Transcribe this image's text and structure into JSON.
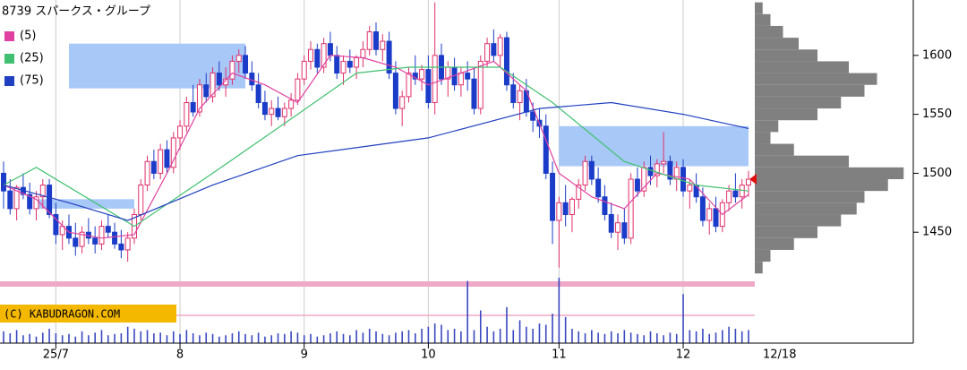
{
  "chart_data": {
    "type": "candlestick",
    "title": "8739 スパークス・グループ",
    "copyright": "(C) KABUDRAGON.COM",
    "up_color": "#e0306a",
    "down_color": "#1a3cc8",
    "volume_color": "#3a48c0",
    "zone_color": "#a8c8f8",
    "profile_color": "#808080",
    "ylim": [
      1419,
      1647
    ],
    "yticks": [
      1450,
      1500,
      1550,
      1600
    ],
    "grid": true,
    "xlim": [
      0,
      114
    ],
    "xticks": [
      {
        "value": 8,
        "label": "25/7"
      },
      {
        "value": 27,
        "label": "8"
      },
      {
        "value": 46,
        "label": "9"
      },
      {
        "value": 65,
        "label": "10"
      },
      {
        "value": 85,
        "label": "11"
      },
      {
        "value": 104,
        "label": "12"
      }
    ],
    "end_date": {
      "value": 114,
      "label": "12/18"
    },
    "ohlc": [
      [
        1500,
        1510,
        1470,
        1485
      ],
      [
        1485,
        1495,
        1465,
        1470
      ],
      [
        1470,
        1490,
        1460,
        1488
      ],
      [
        1488,
        1500,
        1478,
        1482
      ],
      [
        1482,
        1492,
        1465,
        1470
      ],
      [
        1470,
        1485,
        1460,
        1480
      ],
      [
        1480,
        1495,
        1470,
        1490
      ],
      [
        1490,
        1495,
        1462,
        1465
      ],
      [
        1465,
        1475,
        1440,
        1448
      ],
      [
        1448,
        1460,
        1435,
        1455
      ],
      [
        1455,
        1465,
        1440,
        1445
      ],
      [
        1445,
        1458,
        1430,
        1438
      ],
      [
        1438,
        1455,
        1432,
        1450
      ],
      [
        1450,
        1462,
        1440,
        1445
      ],
      [
        1445,
        1455,
        1432,
        1440
      ],
      [
        1440,
        1460,
        1435,
        1455
      ],
      [
        1455,
        1465,
        1445,
        1450
      ],
      [
        1450,
        1458,
        1436,
        1440
      ],
      [
        1440,
        1452,
        1428,
        1435
      ],
      [
        1435,
        1450,
        1425,
        1445
      ],
      [
        1445,
        1470,
        1440,
        1465
      ],
      [
        1465,
        1495,
        1460,
        1490
      ],
      [
        1490,
        1515,
        1485,
        1510
      ],
      [
        1510,
        1520,
        1495,
        1500
      ],
      [
        1500,
        1525,
        1495,
        1520
      ],
      [
        1520,
        1528,
        1500,
        1505
      ],
      [
        1505,
        1535,
        1500,
        1530
      ],
      [
        1530,
        1545,
        1520,
        1540
      ],
      [
        1540,
        1565,
        1535,
        1560
      ],
      [
        1560,
        1575,
        1548,
        1552
      ],
      [
        1552,
        1580,
        1548,
        1575
      ],
      [
        1575,
        1585,
        1560,
        1565
      ],
      [
        1565,
        1590,
        1560,
        1585
      ],
      [
        1585,
        1595,
        1570,
        1575
      ],
      [
        1575,
        1590,
        1565,
        1580
      ],
      [
        1580,
        1600,
        1575,
        1595
      ],
      [
        1595,
        1605,
        1585,
        1600
      ],
      [
        1600,
        1608,
        1580,
        1585
      ],
      [
        1585,
        1595,
        1570,
        1575
      ],
      [
        1575,
        1585,
        1555,
        1560
      ],
      [
        1560,
        1570,
        1545,
        1550
      ],
      [
        1550,
        1562,
        1540,
        1555
      ],
      [
        1555,
        1565,
        1545,
        1548
      ],
      [
        1548,
        1560,
        1540,
        1555
      ],
      [
        1555,
        1568,
        1548,
        1562
      ],
      [
        1562,
        1585,
        1558,
        1580
      ],
      [
        1580,
        1600,
        1575,
        1595
      ],
      [
        1595,
        1612,
        1588,
        1605
      ],
      [
        1605,
        1610,
        1585,
        1590
      ],
      [
        1590,
        1615,
        1585,
        1610
      ],
      [
        1610,
        1620,
        1595,
        1600
      ],
      [
        1600,
        1608,
        1580,
        1585
      ],
      [
        1585,
        1600,
        1575,
        1595
      ],
      [
        1595,
        1605,
        1585,
        1590
      ],
      [
        1590,
        1600,
        1580,
        1598
      ],
      [
        1598,
        1612,
        1590,
        1605
      ],
      [
        1605,
        1625,
        1600,
        1620
      ],
      [
        1620,
        1628,
        1600,
        1605
      ],
      [
        1605,
        1618,
        1595,
        1612
      ],
      [
        1612,
        1620,
        1580,
        1585
      ],
      [
        1585,
        1595,
        1550,
        1555
      ],
      [
        1555,
        1570,
        1540,
        1565
      ],
      [
        1565,
        1590,
        1560,
        1585
      ],
      [
        1585,
        1600,
        1575,
        1580
      ],
      [
        1580,
        1592,
        1570,
        1588
      ],
      [
        1588,
        1600,
        1555,
        1560
      ],
      [
        1560,
        1645,
        1550,
        1600
      ],
      [
        1600,
        1610,
        1575,
        1580
      ],
      [
        1580,
        1595,
        1565,
        1590
      ],
      [
        1590,
        1598,
        1570,
        1575
      ],
      [
        1575,
        1590,
        1565,
        1585
      ],
      [
        1585,
        1595,
        1570,
        1580
      ],
      [
        1580,
        1590,
        1550,
        1555
      ],
      [
        1555,
        1600,
        1550,
        1595
      ],
      [
        1595,
        1615,
        1590,
        1610
      ],
      [
        1610,
        1622,
        1595,
        1600
      ],
      [
        1600,
        1618,
        1590,
        1615
      ],
      [
        1615,
        1620,
        1570,
        1575
      ],
      [
        1575,
        1585,
        1555,
        1560
      ],
      [
        1560,
        1575,
        1545,
        1570
      ],
      [
        1570,
        1580,
        1548,
        1552
      ],
      [
        1552,
        1560,
        1535,
        1545
      ],
      [
        1545,
        1555,
        1530,
        1540
      ],
      [
        1540,
        1550,
        1495,
        1500
      ],
      [
        1500,
        1510,
        1440,
        1460
      ],
      [
        1460,
        1480,
        1420,
        1475
      ],
      [
        1475,
        1490,
        1455,
        1465
      ],
      [
        1465,
        1480,
        1450,
        1478
      ],
      [
        1478,
        1495,
        1470,
        1490
      ],
      [
        1490,
        1515,
        1485,
        1510
      ],
      [
        1510,
        1515,
        1490,
        1495
      ],
      [
        1495,
        1505,
        1475,
        1480
      ],
      [
        1480,
        1490,
        1460,
        1465
      ],
      [
        1465,
        1475,
        1445,
        1450
      ],
      [
        1450,
        1465,
        1435,
        1458
      ],
      [
        1458,
        1470,
        1440,
        1445
      ],
      [
        1445,
        1500,
        1440,
        1495
      ],
      [
        1495,
        1505,
        1480,
        1485
      ],
      [
        1485,
        1510,
        1480,
        1505
      ],
      [
        1505,
        1515,
        1490,
        1498
      ],
      [
        1498,
        1512,
        1488,
        1508
      ],
      [
        1508,
        1535,
        1500,
        1510
      ],
      [
        1510,
        1515,
        1490,
        1495
      ],
      [
        1495,
        1510,
        1485,
        1505
      ],
      [
        1505,
        1512,
        1480,
        1485
      ],
      [
        1485,
        1495,
        1470,
        1490
      ],
      [
        1490,
        1500,
        1475,
        1480
      ],
      [
        1480,
        1488,
        1455,
        1460
      ],
      [
        1460,
        1475,
        1448,
        1470
      ],
      [
        1470,
        1480,
        1450,
        1455
      ],
      [
        1455,
        1478,
        1450,
        1475
      ],
      [
        1475,
        1490,
        1468,
        1485
      ],
      [
        1485,
        1500,
        1475,
        1480
      ],
      [
        1480,
        1495,
        1470,
        1490
      ],
      [
        1490,
        1502,
        1480,
        1495
      ]
    ],
    "vlim": [
      0,
      100
    ],
    "volume": [
      18,
      15,
      20,
      12,
      14,
      10,
      16,
      22,
      15,
      12,
      14,
      10,
      18,
      12,
      16,
      20,
      12,
      14,
      15,
      25,
      22,
      18,
      20,
      15,
      16,
      12,
      18,
      14,
      20,
      15,
      12,
      16,
      14,
      10,
      12,
      15,
      18,
      14,
      12,
      16,
      10,
      12,
      15,
      14,
      18,
      16,
      12,
      14,
      10,
      12,
      15,
      18,
      14,
      12,
      20,
      16,
      22,
      18,
      14,
      12,
      16,
      18,
      20,
      15,
      22,
      25,
      30,
      28,
      20,
      22,
      18,
      95,
      20,
      50,
      25,
      18,
      22,
      55,
      20,
      35,
      25,
      22,
      30,
      28,
      45,
      100,
      40,
      22,
      18,
      15,
      20,
      16,
      14,
      18,
      15,
      20,
      16,
      14,
      12,
      18,
      15,
      12,
      16,
      14,
      75,
      20,
      18,
      22,
      14,
      16,
      20,
      25,
      22,
      18,
      20
    ],
    "series": [
      {
        "name": "(5)",
        "color": "#e040a0",
        "x": [
          0,
          5,
          10,
          15,
          20,
          25,
          30,
          35,
          40,
          45,
          50,
          55,
          60,
          65,
          70,
          75,
          80,
          85,
          90,
          95,
          100,
          105,
          110,
          114
        ],
        "values": [
          1490,
          1478,
          1450,
          1445,
          1448,
          1500,
          1555,
          1585,
          1575,
          1560,
          1600,
          1598,
          1590,
          1575,
          1585,
          1595,
          1570,
          1500,
          1480,
          1470,
          1500,
          1495,
          1465,
          1482
        ]
      },
      {
        "name": "(25)",
        "color": "#40c070",
        "x": [
          0,
          5,
          20,
          32,
          45,
          54,
          62,
          76,
          84,
          95,
          106,
          114
        ],
        "values": [
          1490,
          1505,
          1455,
          1500,
          1550,
          1585,
          1590,
          1590,
          1560,
          1510,
          1490,
          1485
        ]
      },
      {
        "name": "(75)",
        "color": "#2040c0",
        "x": [
          0,
          10,
          19,
          32,
          45,
          65,
          82,
          93,
          104,
          114
        ],
        "values": [
          1490,
          1475,
          1460,
          1490,
          1515,
          1530,
          1555,
          1560,
          1550,
          1538
        ]
      }
    ],
    "zones": [
      {
        "x": [
          10,
          37
        ],
        "y": [
          1572,
          1610
        ]
      },
      {
        "x": [
          5,
          20
        ],
        "y": [
          1470,
          1478
        ]
      },
      {
        "x": [
          85,
          114
        ],
        "y": [
          1506,
          1540
        ]
      }
    ],
    "profile": {
      "xlim": [
        0,
        100
      ],
      "levels": [
        1420,
        1430,
        1440,
        1450,
        1460,
        1470,
        1480,
        1490,
        1500,
        1510,
        1520,
        1530,
        1540,
        1550,
        1560,
        1570,
        1580,
        1590,
        1600,
        1610,
        1620,
        1630,
        1640
      ],
      "values": [
        5,
        10,
        25,
        40,
        55,
        65,
        70,
        85,
        95,
        60,
        25,
        10,
        15,
        40,
        55,
        70,
        78,
        60,
        40,
        28,
        18,
        10,
        5
      ]
    }
  }
}
